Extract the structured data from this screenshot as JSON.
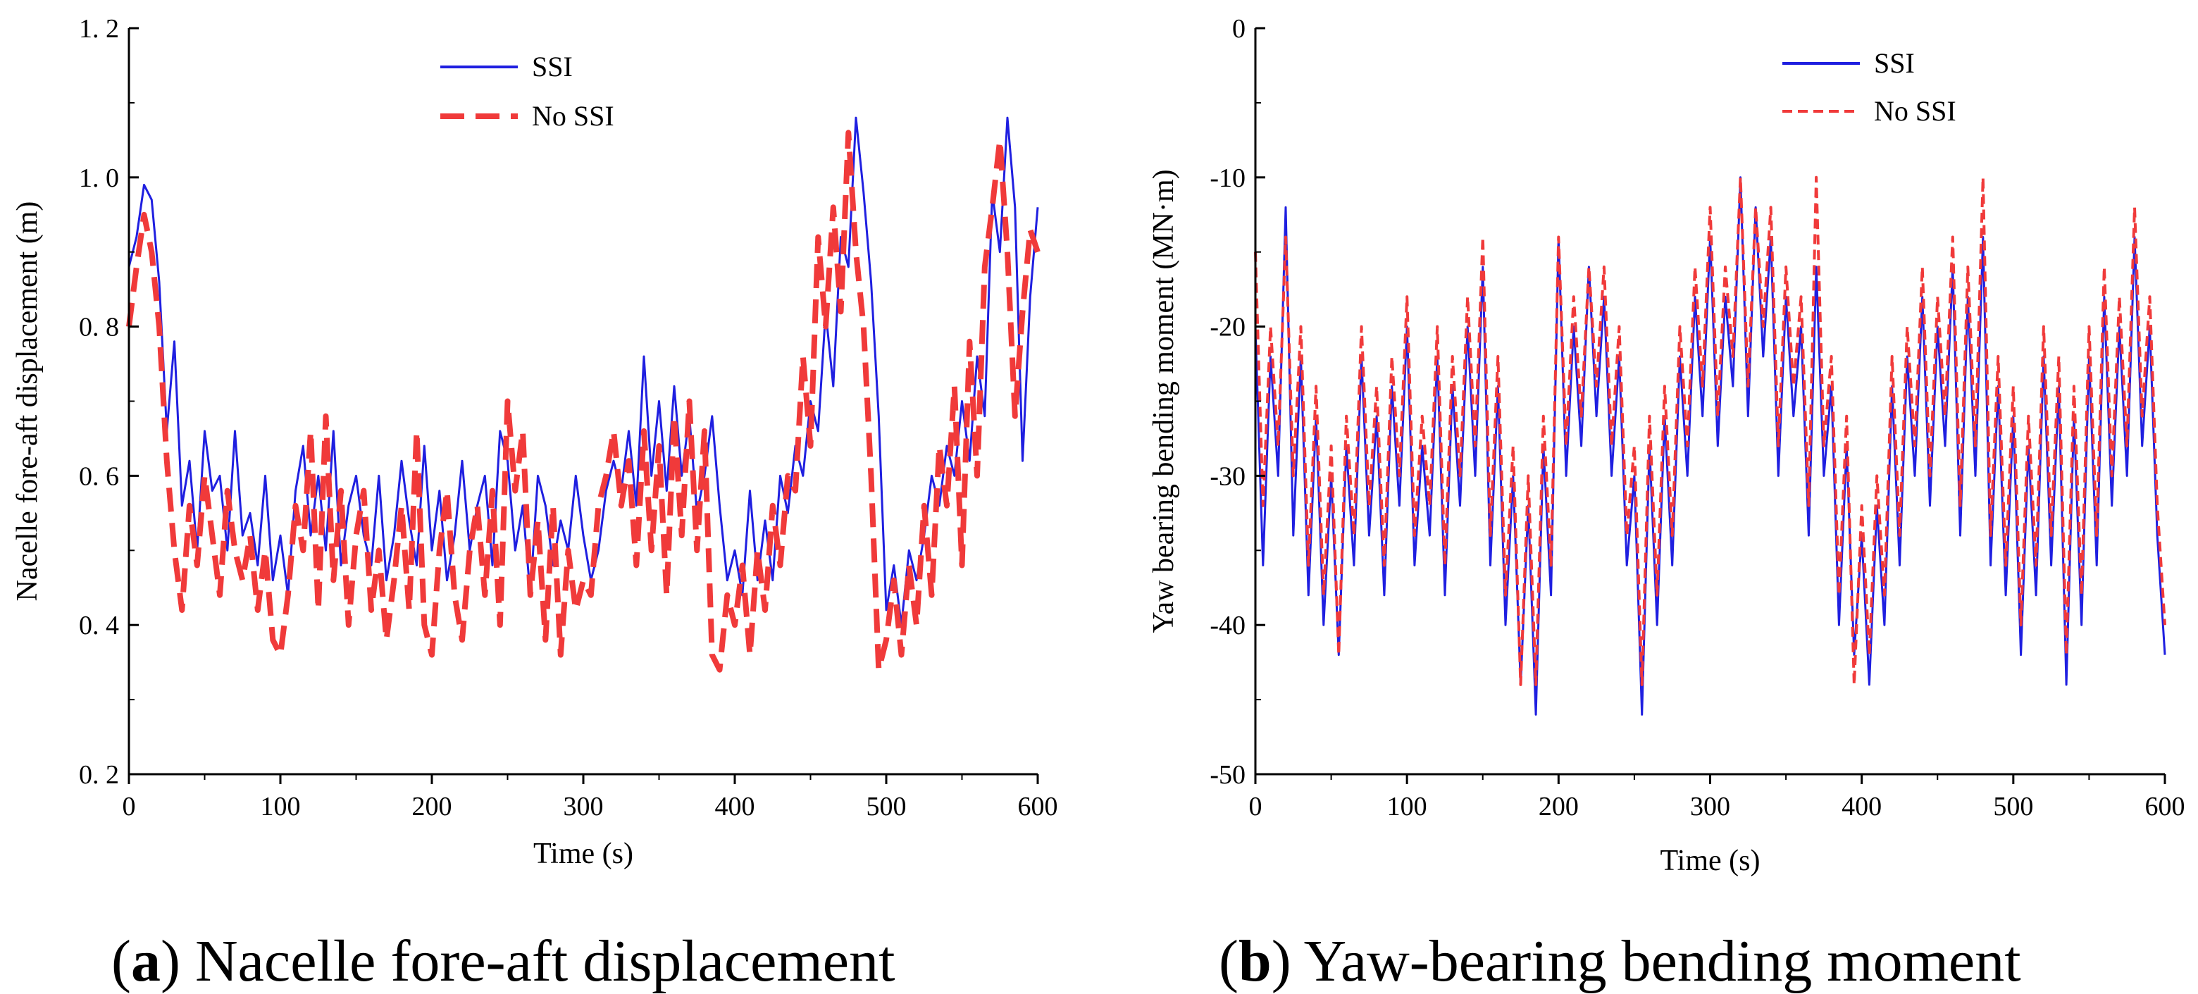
{
  "figure": {
    "captions": [
      {
        "prefix": "(",
        "letter": "a",
        "suffix": ")",
        "text": " Nacelle fore-aft displacement"
      },
      {
        "prefix": "(",
        "letter": "b",
        "suffix": ")",
        "text": " Yaw-bearing bending moment"
      }
    ]
  },
  "colors": {
    "ssi": "#1f1fe0",
    "no_ssi": "#f03a3a"
  },
  "chart_data": [
    {
      "type": "line",
      "title": "",
      "xlabel": "Time (s)",
      "ylabel": "Nacelle fore-aft displacement (m)",
      "xlim": [
        0,
        600
      ],
      "ylim": [
        0.2,
        1.2
      ],
      "xticks": [
        0,
        100,
        200,
        300,
        400,
        500,
        600
      ],
      "xtick_labels": [
        "0",
        "100",
        "200",
        "300",
        "400",
        "500",
        "600"
      ],
      "yticks": [
        0.2,
        0.4,
        0.6,
        0.8,
        1.0,
        1.2
      ],
      "ytick_labels": [
        "0. 2",
        "0. 4",
        "0. 6",
        "0. 8",
        "1. 0",
        "1. 2"
      ],
      "legend": {
        "location": "top-center",
        "entries": [
          "SSI",
          "No SSI"
        ]
      },
      "series": [
        {
          "name": "SSI",
          "style": "solid",
          "x": [
            0,
            5,
            10,
            15,
            20,
            25,
            30,
            35,
            40,
            45,
            50,
            55,
            60,
            65,
            70,
            75,
            80,
            85,
            90,
            95,
            100,
            105,
            110,
            115,
            120,
            125,
            130,
            135,
            140,
            145,
            150,
            155,
            160,
            165,
            170,
            175,
            180,
            185,
            190,
            195,
            200,
            205,
            210,
            215,
            220,
            225,
            230,
            235,
            240,
            245,
            250,
            255,
            260,
            265,
            270,
            275,
            280,
            285,
            290,
            295,
            300,
            305,
            310,
            315,
            320,
            325,
            330,
            335,
            340,
            345,
            350,
            355,
            360,
            365,
            370,
            375,
            380,
            385,
            390,
            395,
            400,
            405,
            410,
            415,
            420,
            425,
            430,
            435,
            440,
            445,
            450,
            455,
            460,
            465,
            470,
            475,
            480,
            485,
            490,
            495,
            500,
            505,
            510,
            515,
            520,
            525,
            530,
            535,
            540,
            545,
            550,
            555,
            560,
            565,
            570,
            575,
            580,
            585,
            590,
            595,
            600
          ],
          "y": [
            0.88,
            0.92,
            0.99,
            0.97,
            0.86,
            0.66,
            0.78,
            0.56,
            0.62,
            0.5,
            0.66,
            0.58,
            0.6,
            0.5,
            0.66,
            0.52,
            0.55,
            0.48,
            0.6,
            0.46,
            0.52,
            0.44,
            0.58,
            0.64,
            0.52,
            0.6,
            0.5,
            0.66,
            0.48,
            0.56,
            0.6,
            0.52,
            0.48,
            0.6,
            0.46,
            0.52,
            0.62,
            0.54,
            0.48,
            0.64,
            0.5,
            0.58,
            0.46,
            0.52,
            0.62,
            0.5,
            0.56,
            0.6,
            0.48,
            0.66,
            0.62,
            0.5,
            0.56,
            0.44,
            0.6,
            0.56,
            0.48,
            0.54,
            0.5,
            0.6,
            0.52,
            0.46,
            0.5,
            0.58,
            0.62,
            0.58,
            0.66,
            0.56,
            0.76,
            0.6,
            0.7,
            0.58,
            0.72,
            0.6,
            0.68,
            0.55,
            0.6,
            0.68,
            0.56,
            0.46,
            0.5,
            0.44,
            0.58,
            0.46,
            0.54,
            0.46,
            0.6,
            0.55,
            0.64,
            0.6,
            0.7,
            0.66,
            0.82,
            0.72,
            0.92,
            0.88,
            1.08,
            0.98,
            0.86,
            0.68,
            0.42,
            0.48,
            0.4,
            0.5,
            0.46,
            0.52,
            0.6,
            0.56,
            0.64,
            0.6,
            0.7,
            0.62,
            0.76,
            0.68,
            0.98,
            0.9,
            1.08,
            0.96,
            0.62,
            0.84,
            0.96
          ]
        },
        {
          "name": "No SSI",
          "style": "dashed",
          "x": [
            0,
            5,
            10,
            15,
            20,
            25,
            30,
            35,
            40,
            45,
            50,
            55,
            60,
            65,
            70,
            75,
            80,
            85,
            90,
            95,
            100,
            105,
            110,
            115,
            120,
            125,
            130,
            135,
            140,
            145,
            150,
            155,
            160,
            165,
            170,
            175,
            180,
            185,
            190,
            195,
            200,
            205,
            210,
            215,
            220,
            225,
            230,
            235,
            240,
            245,
            250,
            255,
            260,
            265,
            270,
            275,
            280,
            285,
            290,
            295,
            300,
            305,
            310,
            315,
            320,
            325,
            330,
            335,
            340,
            345,
            350,
            355,
            360,
            365,
            370,
            375,
            380,
            385,
            390,
            395,
            400,
            405,
            410,
            415,
            420,
            425,
            430,
            435,
            440,
            445,
            450,
            455,
            460,
            465,
            470,
            475,
            480,
            485,
            490,
            495,
            500,
            505,
            510,
            515,
            520,
            525,
            530,
            535,
            540,
            545,
            550,
            555,
            560,
            565,
            570,
            575,
            580,
            585,
            590,
            595,
            600
          ],
          "y": [
            0.8,
            0.88,
            0.95,
            0.9,
            0.8,
            0.62,
            0.5,
            0.42,
            0.56,
            0.48,
            0.6,
            0.52,
            0.44,
            0.58,
            0.5,
            0.46,
            0.52,
            0.42,
            0.5,
            0.38,
            0.36,
            0.44,
            0.56,
            0.5,
            0.66,
            0.42,
            0.68,
            0.46,
            0.58,
            0.4,
            0.52,
            0.58,
            0.42,
            0.5,
            0.38,
            0.46,
            0.56,
            0.42,
            0.66,
            0.4,
            0.36,
            0.5,
            0.58,
            0.44,
            0.38,
            0.5,
            0.56,
            0.44,
            0.58,
            0.4,
            0.7,
            0.58,
            0.66,
            0.44,
            0.54,
            0.38,
            0.56,
            0.36,
            0.5,
            0.42,
            0.46,
            0.44,
            0.56,
            0.6,
            0.66,
            0.56,
            0.62,
            0.48,
            0.66,
            0.5,
            0.64,
            0.44,
            0.68,
            0.52,
            0.7,
            0.5,
            0.66,
            0.36,
            0.34,
            0.44,
            0.4,
            0.48,
            0.36,
            0.5,
            0.42,
            0.56,
            0.48,
            0.6,
            0.58,
            0.76,
            0.64,
            0.92,
            0.8,
            0.96,
            0.82,
            1.06,
            0.9,
            0.8,
            0.6,
            0.34,
            0.38,
            0.46,
            0.36,
            0.48,
            0.4,
            0.56,
            0.44,
            0.64,
            0.56,
            0.72,
            0.48,
            0.78,
            0.6,
            0.88,
            0.96,
            1.05,
            0.9,
            0.68,
            0.82,
            0.93,
            0.9
          ]
        }
      ]
    },
    {
      "type": "line",
      "title": "",
      "xlabel": "Time (s)",
      "ylabel": "Yaw bearing bending moment  (MN·m)",
      "xlim": [
        0,
        600
      ],
      "ylim": [
        -50,
        0
      ],
      "xticks": [
        0,
        100,
        200,
        300,
        400,
        500,
        600
      ],
      "xtick_labels": [
        "0",
        "100",
        "200",
        "300",
        "400",
        "500",
        "600"
      ],
      "yticks": [
        -50,
        -40,
        -30,
        -20,
        -10,
        0
      ],
      "ytick_labels": [
        "-50",
        "-40",
        "-30",
        "-20",
        "-10",
        "0"
      ],
      "legend": {
        "location": "top-center",
        "entries": [
          "SSI",
          "No SSI"
        ]
      },
      "series": [
        {
          "name": "SSI",
          "style": "solid",
          "x": [
            0,
            5,
            10,
            15,
            20,
            25,
            30,
            35,
            40,
            45,
            50,
            55,
            60,
            65,
            70,
            75,
            80,
            85,
            90,
            95,
            100,
            105,
            110,
            115,
            120,
            125,
            130,
            135,
            140,
            145,
            150,
            155,
            160,
            165,
            170,
            175,
            180,
            185,
            190,
            195,
            200,
            205,
            210,
            215,
            220,
            225,
            230,
            235,
            240,
            245,
            250,
            255,
            260,
            265,
            270,
            275,
            280,
            285,
            290,
            295,
            300,
            305,
            310,
            315,
            320,
            325,
            330,
            335,
            340,
            345,
            350,
            355,
            360,
            365,
            370,
            375,
            380,
            385,
            390,
            395,
            400,
            405,
            410,
            415,
            420,
            425,
            430,
            435,
            440,
            445,
            450,
            455,
            460,
            465,
            470,
            475,
            480,
            485,
            490,
            495,
            500,
            505,
            510,
            515,
            520,
            525,
            530,
            535,
            540,
            545,
            550,
            555,
            560,
            565,
            570,
            575,
            580,
            585,
            590,
            595,
            600
          ],
          "y": [
            -20,
            -36,
            -22,
            -30,
            -12,
            -34,
            -22,
            -38,
            -26,
            -40,
            -30,
            -42,
            -28,
            -36,
            -22,
            -34,
            -26,
            -38,
            -24,
            -32,
            -20,
            -36,
            -28,
            -34,
            -22,
            -38,
            -24,
            -32,
            -20,
            -30,
            -16,
            -36,
            -24,
            -40,
            -30,
            -44,
            -32,
            -46,
            -28,
            -38,
            -14,
            -30,
            -20,
            -28,
            -16,
            -26,
            -18,
            -30,
            -22,
            -36,
            -30,
            -46,
            -28,
            -40,
            -26,
            -36,
            -22,
            -30,
            -18,
            -26,
            -14,
            -28,
            -18,
            -24,
            -10,
            -26,
            -12,
            -22,
            -14,
            -30,
            -18,
            -26,
            -20,
            -34,
            -16,
            -30,
            -24,
            -40,
            -28,
            -42,
            -34,
            -44,
            -32,
            -40,
            -24,
            -36,
            -22,
            -30,
            -18,
            -32,
            -20,
            -28,
            -16,
            -34,
            -18,
            -30,
            -14,
            -36,
            -24,
            -38,
            -26,
            -42,
            -28,
            -38,
            -22,
            -36,
            -24,
            -44,
            -26,
            -40,
            -22,
            -36,
            -18,
            -32,
            -20,
            -30,
            -14,
            -28,
            -20,
            -34,
            -42
          ]
        },
        {
          "name": "No SSI",
          "style": "dashed",
          "x": [
            0,
            5,
            10,
            15,
            20,
            25,
            30,
            35,
            40,
            45,
            50,
            55,
            60,
            65,
            70,
            75,
            80,
            85,
            90,
            95,
            100,
            105,
            110,
            115,
            120,
            125,
            130,
            135,
            140,
            145,
            150,
            155,
            160,
            165,
            170,
            175,
            180,
            185,
            190,
            195,
            200,
            205,
            210,
            215,
            220,
            225,
            230,
            235,
            240,
            245,
            250,
            255,
            260,
            265,
            270,
            275,
            280,
            285,
            290,
            295,
            300,
            305,
            310,
            315,
            320,
            325,
            330,
            335,
            340,
            345,
            350,
            355,
            360,
            365,
            370,
            375,
            380,
            385,
            390,
            395,
            400,
            405,
            410,
            415,
            420,
            425,
            430,
            435,
            440,
            445,
            450,
            455,
            460,
            465,
            470,
            475,
            480,
            485,
            490,
            495,
            500,
            505,
            510,
            515,
            520,
            525,
            530,
            535,
            540,
            545,
            550,
            555,
            560,
            565,
            570,
            575,
            580,
            585,
            590,
            595,
            600
          ],
          "y": [
            -15,
            -32,
            -20,
            -28,
            -14,
            -30,
            -20,
            -36,
            -24,
            -38,
            -28,
            -42,
            -26,
            -34,
            -20,
            -32,
            -24,
            -36,
            -22,
            -30,
            -18,
            -34,
            -26,
            -32,
            -20,
            -36,
            -22,
            -30,
            -18,
            -28,
            -14,
            -34,
            -22,
            -38,
            -28,
            -44,
            -30,
            -44,
            -26,
            -36,
            -14,
            -28,
            -18,
            -26,
            -16,
            -24,
            -16,
            -28,
            -20,
            -34,
            -28,
            -44,
            -26,
            -38,
            -24,
            -34,
            -20,
            -28,
            -16,
            -24,
            -12,
            -26,
            -16,
            -22,
            -10,
            -24,
            -12,
            -20,
            -12,
            -28,
            -16,
            -24,
            -18,
            -32,
            -10,
            -28,
            -22,
            -38,
            -26,
            -44,
            -32,
            -42,
            -30,
            -38,
            -22,
            -34,
            -20,
            -28,
            -16,
            -30,
            -18,
            -26,
            -14,
            -32,
            -16,
            -28,
            -10,
            -34,
            -22,
            -36,
            -24,
            -40,
            -26,
            -36,
            -20,
            -34,
            -22,
            -42,
            -24,
            -38,
            -20,
            -34,
            -16,
            -30,
            -18,
            -28,
            -12,
            -26,
            -18,
            -32,
            -40
          ]
        }
      ]
    }
  ]
}
